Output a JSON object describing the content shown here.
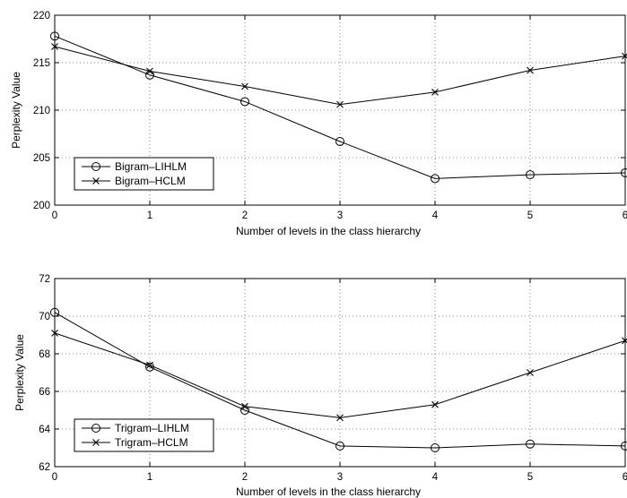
{
  "chart_data": [
    {
      "type": "line",
      "title": "",
      "xlabel": "Number of levels in the class hierarchy",
      "ylabel": "Perplexity Value",
      "xlim": [
        0,
        6
      ],
      "ylim": [
        200,
        220
      ],
      "x_ticks": [
        0,
        1,
        2,
        3,
        4,
        5,
        6
      ],
      "y_ticks": [
        200,
        205,
        210,
        215,
        220
      ],
      "grid": true,
      "legend_position": "bottom-left",
      "x": [
        0,
        1,
        2,
        3,
        4,
        5,
        6
      ],
      "series": [
        {
          "name": "Bigram–LIHLM",
          "marker": "circle",
          "values": [
            217.8,
            213.7,
            210.9,
            206.7,
            202.8,
            203.2,
            203.4
          ]
        },
        {
          "name": "Bigram–HCLM",
          "marker": "x",
          "values": [
            216.7,
            214.1,
            212.5,
            210.6,
            211.9,
            214.2,
            215.7
          ]
        }
      ]
    },
    {
      "type": "line",
      "title": "",
      "xlabel": "Number of levels in the class hierarchy",
      "ylabel": "Perplexity Value",
      "xlim": [
        0,
        6
      ],
      "ylim": [
        62,
        72
      ],
      "x_ticks": [
        0,
        1,
        2,
        3,
        4,
        5,
        6
      ],
      "y_ticks": [
        62,
        64,
        66,
        68,
        70,
        72
      ],
      "grid": true,
      "legend_position": "bottom-left",
      "x": [
        0,
        1,
        2,
        3,
        4,
        5,
        6
      ],
      "series": [
        {
          "name": "Trigram–LIHLM",
          "marker": "circle",
          "values": [
            70.2,
            67.3,
            65.0,
            63.1,
            63.0,
            63.2,
            63.1
          ]
        },
        {
          "name": "Trigram–HCLM",
          "marker": "x",
          "values": [
            69.1,
            67.4,
            65.2,
            64.6,
            65.3,
            67.0,
            68.7
          ]
        }
      ]
    }
  ]
}
